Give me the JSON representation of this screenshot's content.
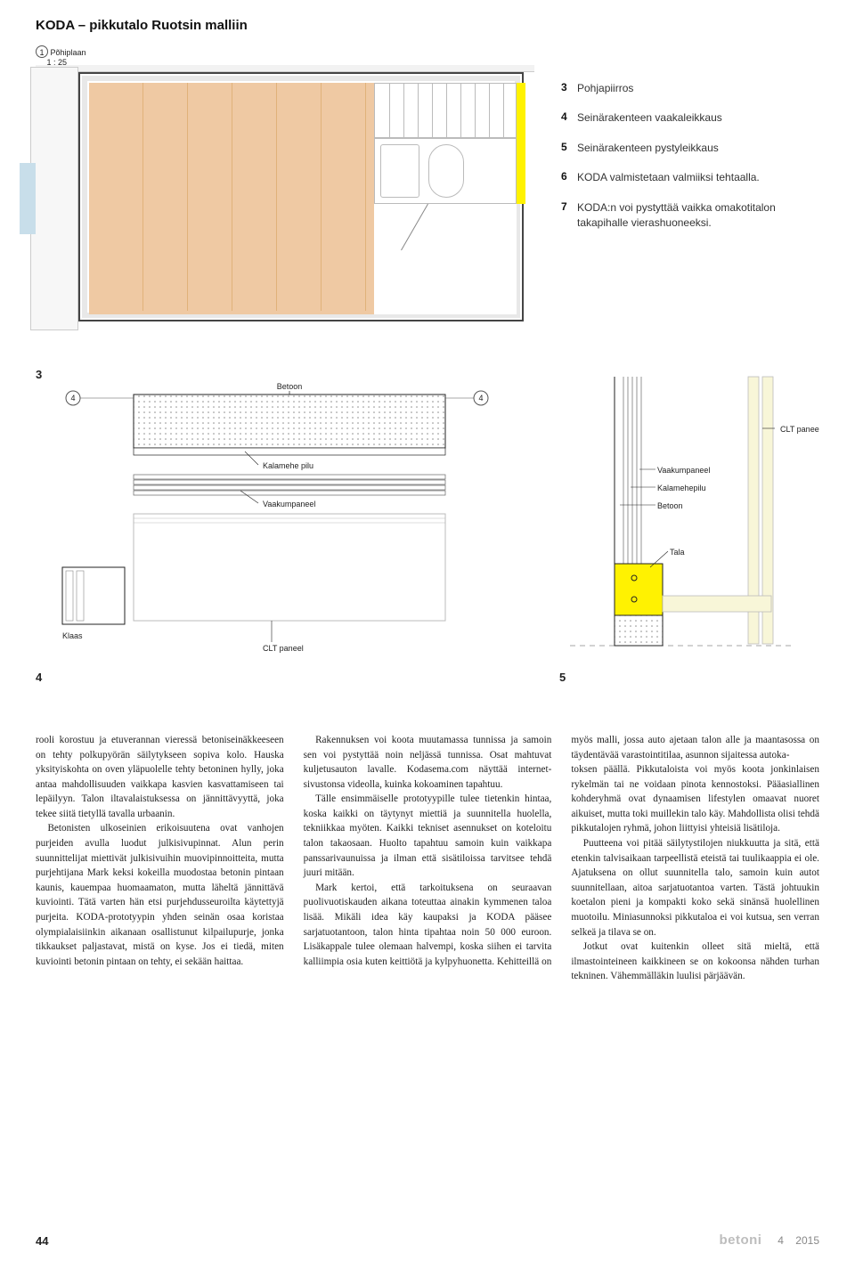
{
  "page_title": "KODA – pikkutalo Ruotsin malliin",
  "fig3": {
    "badge_num": "1",
    "badge_label": "Põhiplaan",
    "badge_scale": "1 : 25",
    "panel_color": "#efc9a3",
    "panel_line_color": "#e0b27a",
    "wall_fill": "#e8e8e8",
    "accent_block": "#c8deea",
    "highlight_strip": "#fff201",
    "panel_lines_x": [
      60,
      110,
      160,
      210,
      260,
      310
    ]
  },
  "legend": [
    {
      "n": "3",
      "t": "Pohjapiirros"
    },
    {
      "n": "4",
      "t": "Seinärakenteen vaakaleikkaus"
    },
    {
      "n": "5",
      "t": "Seinärakenteen pystyleikkaus"
    },
    {
      "n": "6",
      "t": "KODA valmistetaan valmiiksi tehtaalla."
    },
    {
      "n": "7",
      "t": "KODA:n voi pystyttää vaikka omakotitalon takapihalle vierashuoneeksi."
    }
  ],
  "fig45": {
    "hatch_color": "#8a8a8a",
    "outline": "#222222",
    "clt_line": "#bbbbbb",
    "yellow": "#fff201",
    "cream": "#f8f6d8",
    "fontsize": 9,
    "fontfamily": "Arial",
    "labels4": {
      "betoon": "Betoon",
      "kalamehe": "Kalamehe pilu",
      "vaakum": "Vaakumpaneel",
      "klaas": "Klaas",
      "clt": "CLT paneel",
      "ring": "4"
    },
    "labels5": {
      "clt": "CLT paneel",
      "vaakum": "Vaakumpaneel",
      "kalamehe": "Kalamehepilu",
      "betoon": "Betoon",
      "tala": "Tala"
    }
  },
  "fig_nums": {
    "three": "3",
    "four": "4",
    "five": "5"
  },
  "body": {
    "p1": "rooli korostuu ja etuverannan vieressä betoniseinäkkeeseen on tehty polkupyörän säilytykseen sopiva kolo. Hauska yksityiskohta on oven yläpuolelle tehty betoninen hylly, joka antaa mahdollisuuden vaikkapa kasvien kasvattamiseen tai lepäilyyn. Talon iltavalaistuksessa on jännittävyyttä, joka tekee siitä tietyllä tavalla urbaanin.",
    "p2": "Betonisten ulkoseinien erikoisuutena ovat vanhojen purjeiden avulla luodut julkisivupinnat. Alun perin suunnittelijat miettivät julkisivuihin muovipinnoitteita, mutta purjehtijana Mark keksi kokeilla muodostaa betonin pintaan kaunis, kauempaa huomaamaton, mutta läheltä jännittävä kuviointi. Tätä varten hän etsi purjehdusseuroilta käytettyjä purjeita. KODA-prototyypin yhden seinän osaa koristaa olympialaisiinkin aikanaan osallistunut kilpailupurje, jonka tikkaukset paljastavat, mistä on kyse. Jos ei tiedä, miten kuviointi betonin pintaan on tehty, ei sekään haittaa.",
    "p3": "Rakennuksen voi koota muutamassa tunnissa ja samoin sen voi pystyttää noin neljässä tunnissa. Osat mahtuvat kuljetusauton lavalle. Kodasema.com näyttää internet-sivustonsa videolla, kuinka kokoaminen tapahtuu.",
    "p4": "Tälle ensimmäiselle prototyypille tulee tietenkin hintaa, koska kaikki on täytynyt miettiä ja suunnitella huolella, tekniikkaa myöten. Kaikki tekniset asennukset on koteloitu talon takaosaan. Huolto tapahtuu samoin kuin vaikkapa panssarivaunuissa ja ilman että sisätiloissa tarvitsee tehdä juuri mitään.",
    "p5": "Mark kertoi, että tarkoituksena on seuraavan puolivuotiskauden aikana toteuttaa ainakin kymmenen taloa lisää. Mikäli idea käy kaupaksi ja KODA pääsee sarjatuotantoon, talon hinta tipahtaa noin 50 000 euroon. Lisäkappale tulee olemaan halvempi, koska siihen ei tarvita kalliimpia osia kuten keittiötä ja kylpyhuonetta. Kehitteillä on myös malli, jossa auto ajetaan talon alle ja maantasossa on täydentävää varastointitilaa, asunnon sijaitessa autoka-",
    "p6": "toksen päällä. Pikkutaloista voi myös koota jonkinlaisen rykelmän tai ne voidaan pinota kennostoksi. Pääasiallinen kohderyhmä ovat dynaamisen lifestylen omaavat nuoret aikuiset, mutta toki muillekin talo käy. Mahdollista olisi tehdä pikkutalojen ryhmä, johon liittyisi yhteisiä lisätiloja.",
    "p7": "Puutteena voi pitää säilytystilojen niukkuutta ja sitä, että etenkin talvisaikaan tarpeellistä eteistä tai tuulikaappia ei ole. Ajatuksena on ollut suunnitella talo, samoin kuin autot suunnitellaan, aitoa sarjatuotantoa varten. Tästä johtuukin koetalon pieni ja kompakti koko sekä sinänsä huolellinen muotoilu. Miniasunnoksi pikkutaloa ei voi kutsua, sen verran selkeä ja tilava se on.",
    "p8": "Jotkut ovat kuitenkin olleet sitä mieltä, että ilmastointeineen kaikkineen se on kokoonsa nähden turhan tekninen. Vähemmälläkin luulisi pärjäävän."
  },
  "footer": {
    "page": "44",
    "brand": "betoni",
    "issue_num": "4",
    "issue_year": "2015"
  }
}
